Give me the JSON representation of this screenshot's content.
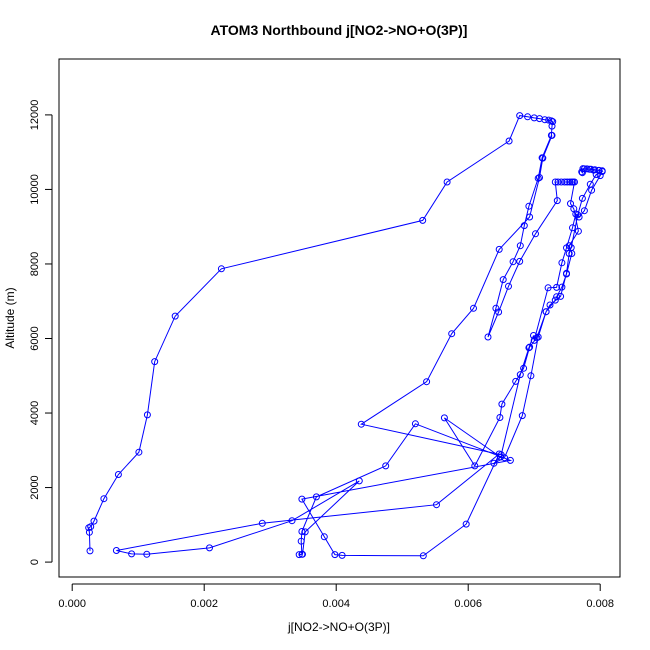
{
  "chart_data": {
    "type": "line",
    "title": "ATOM3 Northbound j[NO2->NO+O(3P)]",
    "xlabel": "j[NO2->NO+O(3P)]",
    "ylabel": "Altitude (m)",
    "xlim": [
      -0.0002,
      0.0083
    ],
    "ylim": [
      -400,
      13500
    ],
    "xticks": [
      0.0,
      0.002,
      0.004,
      0.006,
      0.008
    ],
    "xtick_labels": [
      "0.000",
      "0.002",
      "0.004",
      "0.006",
      "0.008"
    ],
    "yticks": [
      0,
      2000,
      4000,
      6000,
      8000,
      10000,
      12000
    ],
    "ytick_labels": [
      "0",
      "2000",
      "4000",
      "6000",
      "8000",
      "10000",
      "12000"
    ],
    "grid": false,
    "series": [
      {
        "color": "#0000ff",
        "marker": "open-circle",
        "points": [
          [
            0.00027,
            300
          ],
          [
            0.00026,
            800
          ],
          [
            0.00025,
            920
          ],
          [
            0.00028,
            950
          ],
          [
            0.00033,
            1100
          ],
          [
            0.00048,
            1700
          ],
          [
            0.0007,
            2350
          ],
          [
            0.00101,
            2950
          ],
          [
            0.00114,
            3950
          ],
          [
            0.00125,
            5380
          ],
          [
            0.00156,
            6600
          ],
          [
            0.00226,
            7870
          ],
          [
            0.00531,
            9170
          ],
          [
            0.00568,
            10200
          ],
          [
            0.00662,
            11300
          ],
          [
            0.00678,
            11980
          ],
          [
            0.0069,
            11950
          ],
          [
            0.007,
            11920
          ],
          [
            0.00708,
            11900
          ],
          [
            0.00716,
            11870
          ],
          [
            0.00722,
            11860
          ],
          [
            0.00726,
            11840
          ],
          [
            0.00728,
            11820
          ],
          [
            0.00727,
            11700
          ],
          [
            0.00726,
            11450
          ],
          [
            0.00712,
            10850
          ],
          [
            0.00706,
            10300
          ],
          [
            0.00692,
            9550
          ],
          [
            0.00685,
            9030
          ],
          [
            0.00679,
            8490
          ],
          [
            0.00668,
            8060
          ],
          [
            0.00653,
            7580
          ],
          [
            0.00642,
            6810
          ],
          [
            0.0063,
            6040
          ],
          [
            0.00646,
            6710
          ],
          [
            0.00661,
            7400
          ],
          [
            0.00678,
            8070
          ],
          [
            0.00702,
            8810
          ],
          [
            0.00735,
            9700
          ],
          [
            0.00732,
            10200
          ],
          [
            0.00736,
            10200
          ],
          [
            0.00741,
            10200
          ],
          [
            0.00746,
            10200
          ],
          [
            0.0075,
            10200
          ],
          [
            0.00754,
            10200
          ],
          [
            0.00757,
            10200
          ],
          [
            0.00759,
            10200
          ],
          [
            0.00761,
            10200
          ],
          [
            0.00755,
            9620
          ],
          [
            0.0076,
            9480
          ],
          [
            0.00767,
            8880
          ],
          [
            0.00753,
            8490
          ],
          [
            0.00757,
            8280
          ],
          [
            0.00749,
            7730
          ],
          [
            0.00742,
            7380
          ],
          [
            0.00734,
            7120
          ],
          [
            0.00732,
            7030
          ],
          [
            0.00718,
            6720
          ],
          [
            0.00704,
            6020
          ],
          [
            0.00693,
            5770
          ],
          [
            0.00684,
            5200
          ],
          [
            0.00672,
            4850
          ],
          [
            0.00651,
            4240
          ],
          [
            0.00648,
            3880
          ],
          [
            0.0061,
            2580
          ],
          [
            0.00564,
            3870
          ],
          [
            0.00649,
            2820
          ],
          [
            0.00639,
            2650
          ],
          [
            0.00655,
            2800
          ],
          [
            0.00682,
            3930
          ],
          [
            0.00695,
            5000
          ],
          [
            0.00706,
            6040
          ],
          [
            0.00718,
            6720
          ],
          [
            0.00724,
            6900
          ],
          [
            0.0074,
            7130
          ],
          [
            0.00749,
            7750
          ],
          [
            0.00753,
            8280
          ],
          [
            0.00756,
            8440
          ],
          [
            0.00766,
            9320
          ],
          [
            0.00773,
            9760
          ],
          [
            0.00785,
            10140
          ],
          [
            0.00794,
            10400
          ],
          [
            0.00803,
            10480
          ],
          [
            0.00798,
            10510
          ],
          [
            0.00792,
            10530
          ],
          [
            0.00786,
            10540
          ],
          [
            0.0078,
            10550
          ],
          [
            0.00774,
            10560
          ],
          [
            0.00773,
            10450
          ],
          [
            0.00772,
            10470
          ],
          [
            0.00776,
            10550
          ],
          [
            0.00784,
            10540
          ],
          [
            0.0079,
            10520
          ],
          [
            0.00798,
            10510
          ],
          [
            0.00803,
            10500
          ],
          [
            0.008,
            10370
          ],
          [
            0.00787,
            9980
          ],
          [
            0.00776,
            9430
          ],
          [
            0.00768,
            9260
          ],
          [
            0.00763,
            9340
          ],
          [
            0.00758,
            8970
          ],
          [
            0.00749,
            8430
          ],
          [
            0.00742,
            8030
          ],
          [
            0.00734,
            7370
          ],
          [
            0.00721,
            7360
          ],
          [
            0.007,
            5950
          ],
          [
            0.00699,
            6080
          ],
          [
            0.00692,
            5750
          ],
          [
            0.00679,
            5030
          ],
          [
            0.0065,
            2880
          ],
          [
            0.00438,
            3700
          ],
          [
            0.00537,
            4840
          ],
          [
            0.00575,
            6130
          ],
          [
            0.00608,
            6810
          ],
          [
            0.00647,
            8390
          ],
          [
            0.00693,
            9260
          ],
          [
            0.00708,
            10320
          ],
          [
            0.00713,
            10840
          ],
          [
            0.00727,
            11450
          ]
        ]
      },
      {
        "color": "#0000ff",
        "marker": "open-circle",
        "points": [
          [
            0.00344,
            200
          ],
          [
            0.00348,
            210
          ],
          [
            0.00347,
            560
          ],
          [
            0.00348,
            820
          ],
          [
            0.0037,
            1750
          ],
          [
            0.00475,
            2580
          ],
          [
            0.0052,
            3710
          ],
          [
            0.00664,
            2730
          ],
          [
            0.00348,
            1690
          ],
          [
            0.00382,
            680
          ],
          [
            0.00398,
            200
          ],
          [
            0.00409,
            180
          ],
          [
            0.00532,
            170
          ],
          [
            0.00597,
            1020
          ],
          [
            0.00647,
            2900
          ],
          [
            0.00552,
            1540
          ],
          [
            0.00288,
            1040
          ],
          [
            0.00067,
            310
          ],
          [
            0.0009,
            220
          ],
          [
            0.00113,
            210
          ],
          [
            0.00208,
            380
          ],
          [
            0.00333,
            1110
          ],
          [
            0.00435,
            2180
          ],
          [
            0.00353,
            810
          ],
          [
            0.00349,
            210
          ]
        ]
      }
    ]
  }
}
